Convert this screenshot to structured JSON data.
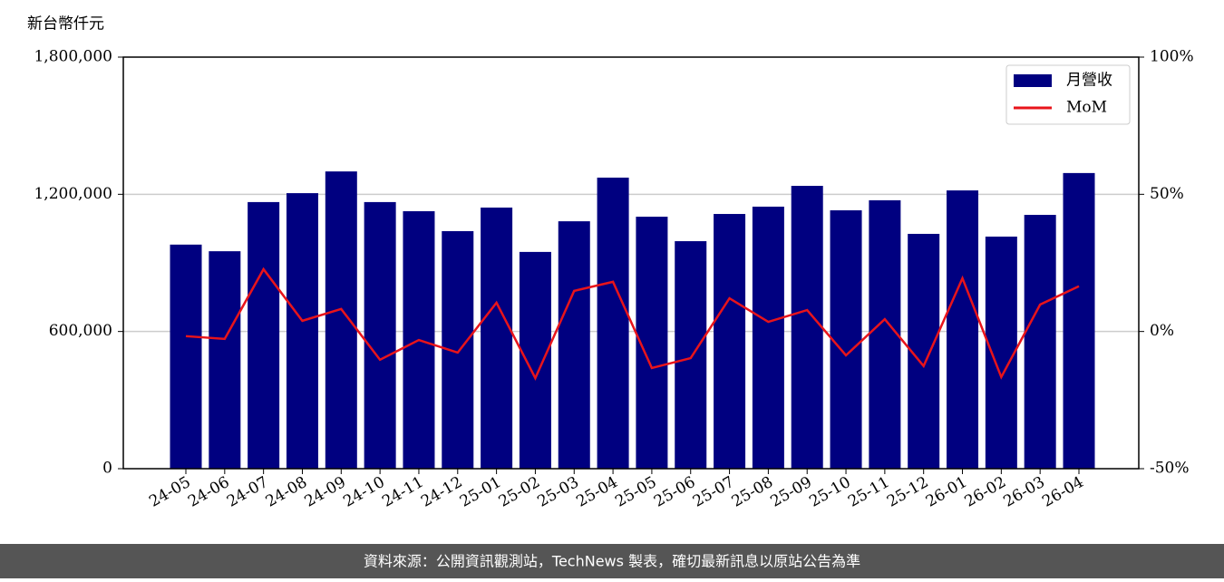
{
  "chart_data": {
    "type": "bar_line",
    "y_label": "新台幣仟元",
    "footer": "資料來源：公開資訊觀測站，TechNews 製表，確切最新訊息以原站公告為準",
    "categories": [
      "24-05",
      "24-06",
      "24-07",
      "24-08",
      "24-09",
      "24-10",
      "24-11",
      "24-12",
      "25-01",
      "25-02",
      "25-03",
      "25-04",
      "25-05",
      "25-06",
      "25-07",
      "25-08",
      "25-09",
      "25-10",
      "25-11",
      "25-12",
      "26-01",
      "26-02",
      "26-03",
      "26-04"
    ],
    "series": [
      {
        "name": "月營收",
        "color": "#000080",
        "type": "bar",
        "values": [
          980000,
          951000,
          1166000,
          1205000,
          1300000,
          1166000,
          1126000,
          1039000,
          1142000,
          948000,
          1082000,
          1273000,
          1102000,
          995000,
          1114000,
          1146000,
          1237000,
          1130000,
          1174000,
          1027000,
          1217000,
          1015000,
          1110000,
          1293000
        ]
      },
      {
        "name": "MoM",
        "color": "#e8141b",
        "type": "line",
        "axis": "y2",
        "values": [
          -1.7,
          -2.7,
          22.7,
          3.9,
          8.2,
          -10.3,
          -3.1,
          -7.7,
          10.5,
          -17.0,
          14.8,
          18.1,
          -13.3,
          -9.7,
          12.1,
          3.5,
          7.8,
          -8.7,
          4.5,
          -12.6,
          19.4,
          -16.6,
          9.8,
          16.5
        ]
      }
    ],
    "ylim": [
      0,
      1800000
    ],
    "yticks": [
      {
        "value": 0,
        "label": "0"
      },
      {
        "value": 600000,
        "label": "600,000"
      },
      {
        "value": 1200000,
        "label": "1,200,000"
      },
      {
        "value": 1800000,
        "label": "1,800,000"
      }
    ],
    "y2lim": [
      -50,
      100
    ],
    "y2ticks": [
      {
        "value": -50,
        "label": "-50%"
      },
      {
        "value": 0,
        "label": "0%"
      },
      {
        "value": 50,
        "label": "50%"
      },
      {
        "value": 100,
        "label": "100%"
      }
    ],
    "grid": true,
    "legend": "upper right"
  }
}
